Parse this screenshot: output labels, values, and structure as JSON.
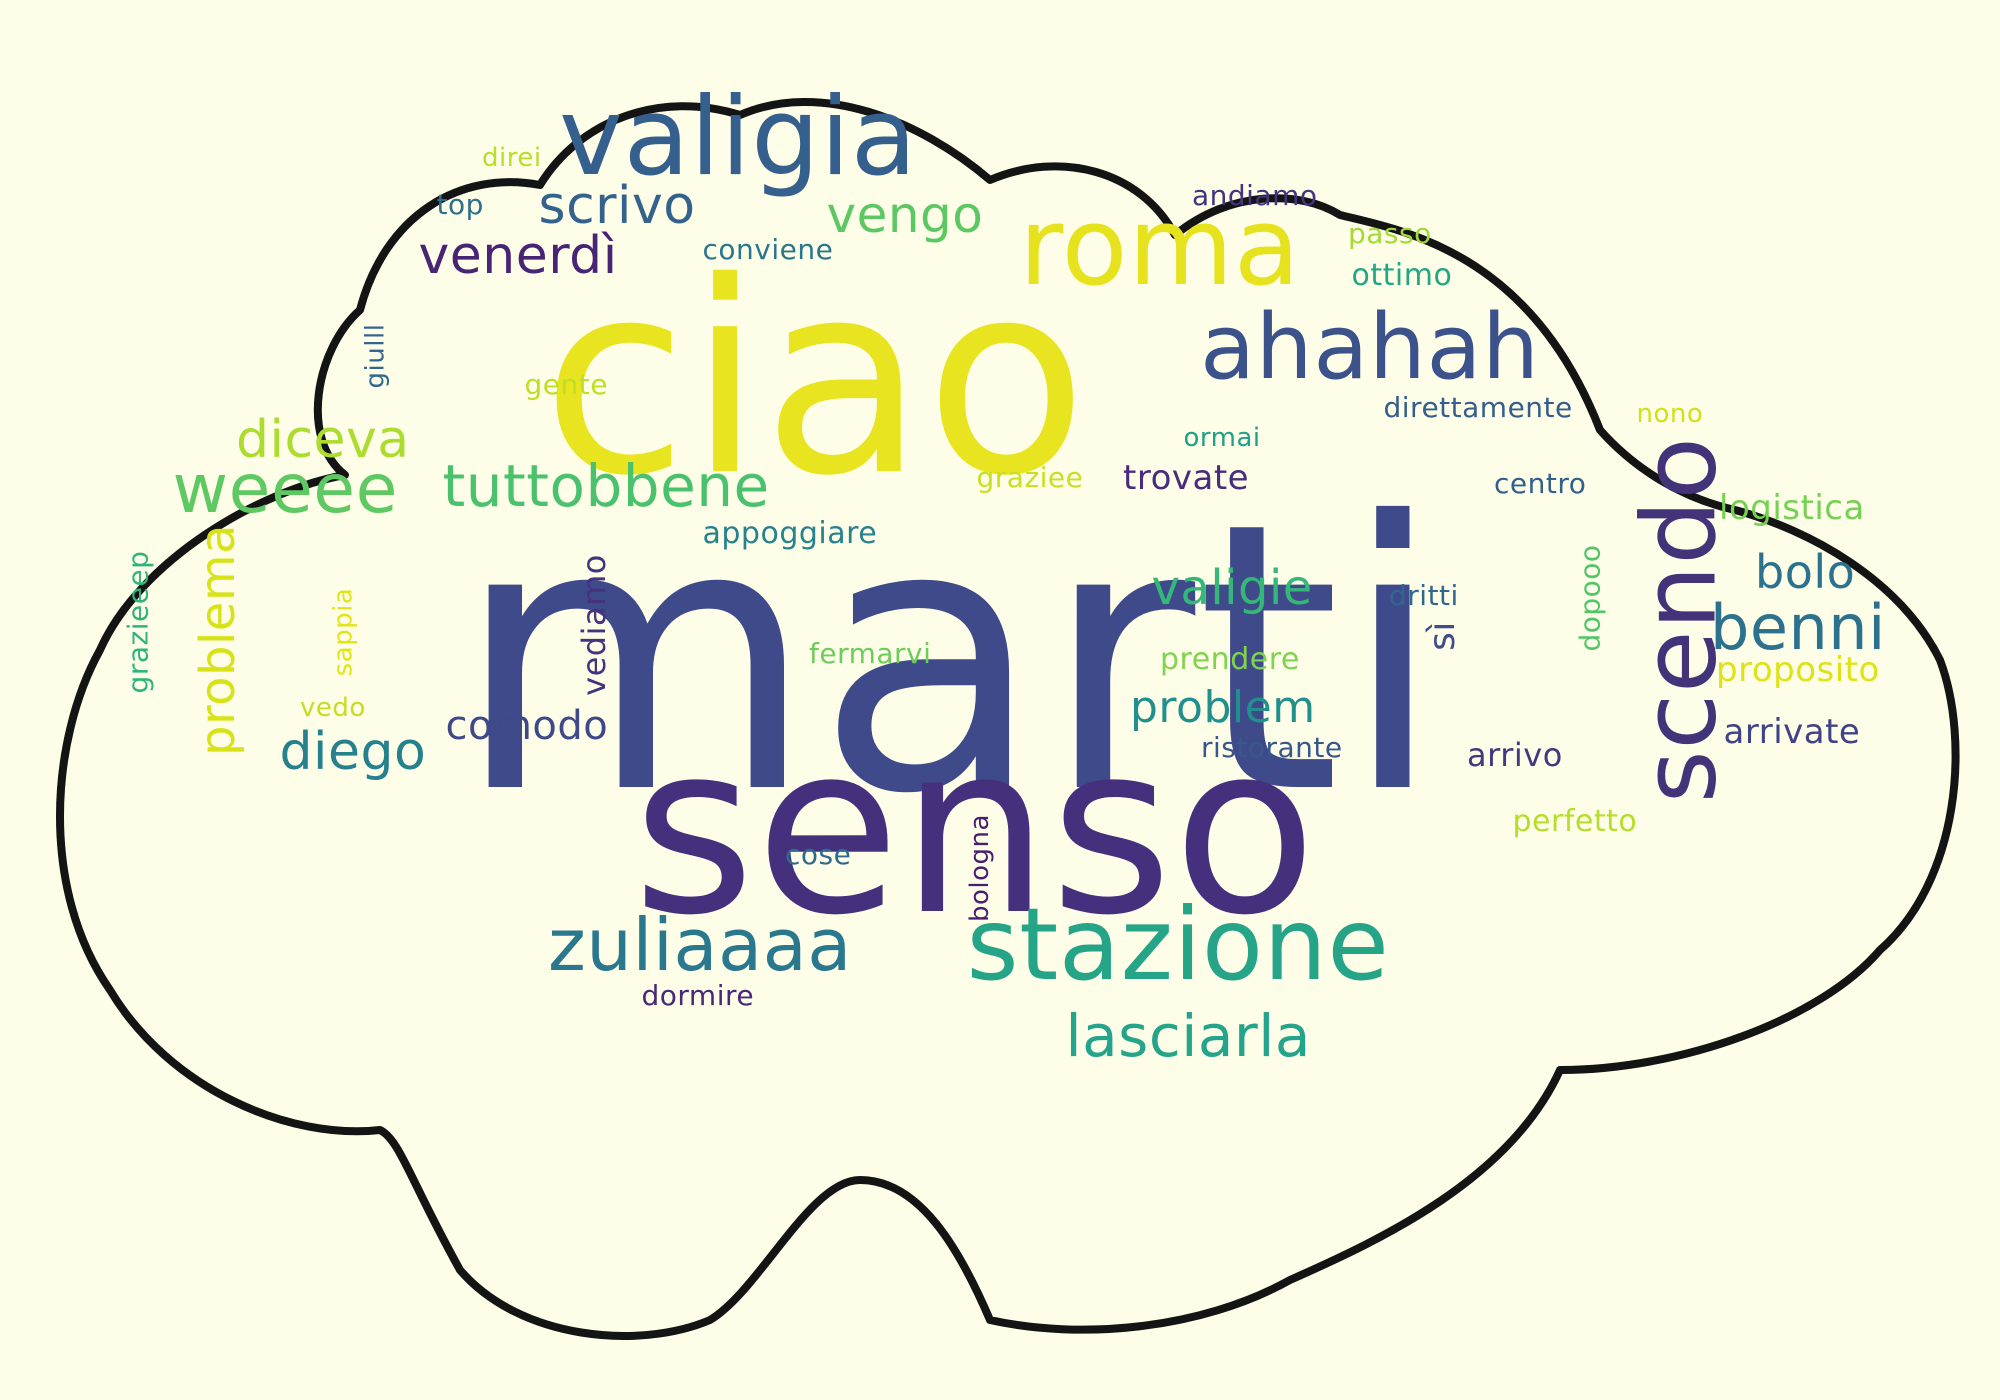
{
  "colors": {
    "background": "#fefee8",
    "cloud_fill": "#fefee8",
    "cloud_outline": "#141414"
  },
  "words": [
    {
      "text": "marti",
      "color": "#3f4a8a"
    },
    {
      "text": "ciao",
      "color": "#e8e420"
    },
    {
      "text": "senso",
      "color": "#45307d"
    },
    {
      "text": "stazione",
      "color": "#25a487"
    },
    {
      "text": "scendo",
      "color": "#453379"
    },
    {
      "text": "roma",
      "color": "#e6e31e"
    },
    {
      "text": "valigia",
      "color": "#355f8d"
    },
    {
      "text": "ahahah",
      "color": "#3b528b"
    },
    {
      "text": "zuliaaaa",
      "color": "#2a788e"
    },
    {
      "text": "lasciarla",
      "color": "#24a48a"
    },
    {
      "text": "weeee",
      "color": "#5ec962"
    },
    {
      "text": "tuttobbene",
      "color": "#4ac16d"
    },
    {
      "text": "benni",
      "color": "#2c728e"
    },
    {
      "text": "diceva",
      "color": "#addc30"
    },
    {
      "text": "vengo",
      "color": "#5cc863"
    },
    {
      "text": "scrivo",
      "color": "#33638d"
    },
    {
      "text": "venerdì",
      "color": "#482475"
    },
    {
      "text": "diego",
      "color": "#26818e"
    },
    {
      "text": "valigie",
      "color": "#35b779"
    },
    {
      "text": "problem",
      "color": "#21908d"
    },
    {
      "text": "comodo",
      "color": "#3e4989"
    },
    {
      "text": "bolo",
      "color": "#2c718e"
    },
    {
      "text": "problema",
      "color": "#d8e219"
    },
    {
      "text": "logistica",
      "color": "#75d054"
    },
    {
      "text": "proposito",
      "color": "#dde318"
    },
    {
      "text": "arrivate",
      "color": "#404387"
    },
    {
      "text": "trovate",
      "color": "#472d7b"
    },
    {
      "text": "appoggiare",
      "color": "#26828e"
    },
    {
      "text": "prendere",
      "color": "#7fd34e"
    },
    {
      "text": "ristorante",
      "color": "#38588c"
    },
    {
      "text": "arrivo",
      "color": "#453781"
    },
    {
      "text": "perfetto",
      "color": "#b5de2b"
    },
    {
      "text": "dormire",
      "color": "#482878"
    },
    {
      "text": "cose",
      "color": "#30698e"
    },
    {
      "text": "bologna",
      "color": "#481f70"
    },
    {
      "text": "fermarvi",
      "color": "#6ccd5a"
    },
    {
      "text": "vediamo",
      "color": "#46327e"
    },
    {
      "text": "sappia",
      "color": "#e2e418"
    },
    {
      "text": "vedo",
      "color": "#c2df23"
    },
    {
      "text": "grazieeep",
      "color": "#2fb47c"
    },
    {
      "text": "dritti",
      "color": "#31678e"
    },
    {
      "text": "sì",
      "color": "#3d4e8a"
    },
    {
      "text": "dopooo",
      "color": "#52c569"
    },
    {
      "text": "centro",
      "color": "#34608d"
    },
    {
      "text": "graziee",
      "color": "#c8e020"
    },
    {
      "text": "ormai",
      "color": "#1fa088"
    },
    {
      "text": "direttamente",
      "color": "#355e8d"
    },
    {
      "text": "nono",
      "color": "#d0e11c"
    },
    {
      "text": "gente",
      "color": "#bddf26"
    },
    {
      "text": "giulll",
      "color": "#31688e"
    },
    {
      "text": "conviene",
      "color": "#2a768e"
    },
    {
      "text": "top",
      "color": "#2d718e"
    },
    {
      "text": "direi",
      "color": "#b8de29"
    },
    {
      "text": "andiamo",
      "color": "#46337e"
    },
    {
      "text": "passo",
      "color": "#a2da37"
    },
    {
      "text": "ottimo",
      "color": "#22a785"
    }
  ]
}
